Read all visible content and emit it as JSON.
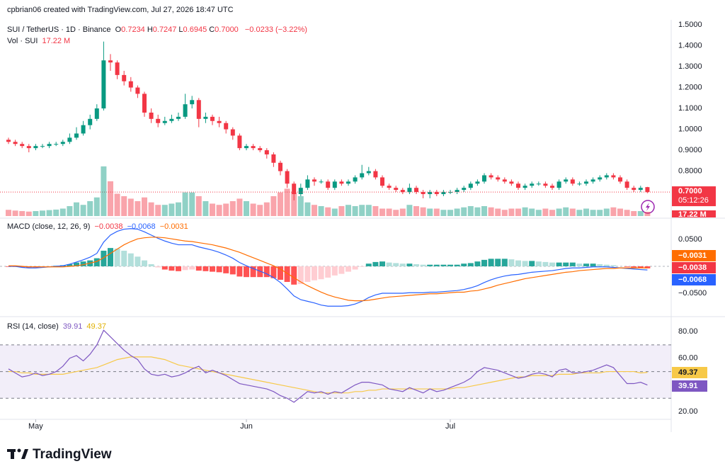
{
  "header": {
    "watermark": "cpbrian06 created with TradingView.com, Jul 27, 2026 18:47 UTC",
    "symbol": "SUI / TetherUS · 1D · Binance",
    "ohlc": [
      {
        "key": "O",
        "value": "0.7234"
      },
      {
        "key": "H",
        "value": "0.7247"
      },
      {
        "key": "L",
        "value": "0.6945"
      },
      {
        "key": "C",
        "value": "0.7000"
      }
    ],
    "change": "−0.0233 (−3.22%)",
    "vol_title": "Vol · SUI",
    "vol_value": "17.22 M",
    "macd_title": "MACD (close, 12, 26, 9)",
    "macd_hist": "−0.0038",
    "macd_line": "−0.0068",
    "macd_signal": "−0.0031",
    "rsi_title": "RSI (14, close)",
    "rsi_value": "39.91",
    "rsi_ma": "49.37",
    "last_price": "0.7000",
    "countdown": "05:12:26"
  },
  "footer": {
    "logo": "TradingView"
  },
  "chart_data": [
    {
      "type": "candlestick",
      "up_color": "#089981",
      "down_color": "#f23645",
      "xlim": [
        -1.25,
        97.5
      ],
      "xticks": [
        {
          "value": 4,
          "label": "May"
        },
        {
          "value": 35,
          "label": "Jun"
        },
        {
          "value": 65,
          "label": "Jul"
        }
      ],
      "ylim": [
        0.585,
        1.524
      ],
      "yticks": [
        {
          "value": 1.5,
          "label": "1.5000"
        },
        {
          "value": 1.4,
          "label": "1.4000"
        },
        {
          "value": 1.3,
          "label": "1.3000"
        },
        {
          "value": 1.2,
          "label": "1.2000"
        },
        {
          "value": 1.1,
          "label": "1.1000"
        },
        {
          "value": 1,
          "label": "1.0000"
        },
        {
          "value": 0.9,
          "label": "0.9000"
        },
        {
          "value": 0.8,
          "label": "0.8000"
        }
      ],
      "open": [
        0.95,
        0.94,
        0.93,
        0.92,
        0.91,
        0.92,
        0.92,
        0.93,
        0.93,
        0.94,
        0.96,
        0.98,
        1.02,
        1.05,
        1.1,
        1.33,
        1.32,
        1.26,
        1.23,
        1.2,
        1.17,
        1.08,
        1.05,
        1.03,
        1.04,
        1.05,
        1.06,
        1.12,
        1.14,
        1.05,
        1.06,
        1.04,
        1.03,
        1.0,
        0.97,
        0.91,
        0.92,
        0.91,
        0.9,
        0.88,
        0.84,
        0.8,
        0.74,
        0.69,
        0.72,
        0.76,
        0.75,
        0.75,
        0.72,
        0.75,
        0.74,
        0.75,
        0.77,
        0.79,
        0.8,
        0.77,
        0.73,
        0.72,
        0.71,
        0.7,
        0.72,
        0.7,
        0.69,
        0.7,
        0.69,
        0.7,
        0.7,
        0.71,
        0.72,
        0.74,
        0.75,
        0.78,
        0.77,
        0.76,
        0.75,
        0.74,
        0.72,
        0.73,
        0.74,
        0.74,
        0.73,
        0.72,
        0.75,
        0.76,
        0.74,
        0.74,
        0.75,
        0.76,
        0.77,
        0.78,
        0.77,
        0.75,
        0.72,
        0.71,
        0.7234
      ],
      "high": [
        0.96,
        0.95,
        0.94,
        0.93,
        0.93,
        0.93,
        0.94,
        0.94,
        0.95,
        0.98,
        1.01,
        1.04,
        1.07,
        1.12,
        1.42,
        1.36,
        1.33,
        1.28,
        1.25,
        1.21,
        1.18,
        1.1,
        1.07,
        1.06,
        1.07,
        1.08,
        1.17,
        1.16,
        1.15,
        1.08,
        1.07,
        1.06,
        1.04,
        1.01,
        0.98,
        0.93,
        0.93,
        0.92,
        0.91,
        0.89,
        0.85,
        0.81,
        0.75,
        0.74,
        0.78,
        0.77,
        0.76,
        0.76,
        0.76,
        0.76,
        0.76,
        0.78,
        0.83,
        0.82,
        0.81,
        0.78,
        0.74,
        0.73,
        0.72,
        0.74,
        0.73,
        0.71,
        0.71,
        0.71,
        0.71,
        0.71,
        0.72,
        0.73,
        0.75,
        0.76,
        0.79,
        0.79,
        0.78,
        0.77,
        0.76,
        0.75,
        0.74,
        0.75,
        0.75,
        0.75,
        0.74,
        0.76,
        0.77,
        0.77,
        0.75,
        0.76,
        0.77,
        0.78,
        0.79,
        0.79,
        0.78,
        0.76,
        0.73,
        0.73,
        0.7247
      ],
      "low": [
        0.93,
        0.92,
        0.91,
        0.89,
        0.9,
        0.91,
        0.91,
        0.92,
        0.92,
        0.93,
        0.95,
        0.97,
        1.0,
        1.04,
        1.09,
        1.28,
        1.24,
        1.21,
        1.18,
        1.15,
        1.06,
        1.03,
        1.01,
        1.02,
        1.03,
        1.04,
        1.05,
        1.1,
        1.01,
        1.03,
        1.02,
        1.01,
        0.98,
        0.95,
        0.9,
        0.9,
        0.9,
        0.89,
        0.86,
        0.82,
        0.78,
        0.72,
        0.66,
        0.68,
        0.71,
        0.73,
        0.74,
        0.71,
        0.71,
        0.73,
        0.73,
        0.74,
        0.76,
        0.78,
        0.76,
        0.72,
        0.71,
        0.7,
        0.69,
        0.69,
        0.69,
        0.67,
        0.67,
        0.68,
        0.68,
        0.69,
        0.69,
        0.7,
        0.71,
        0.73,
        0.74,
        0.76,
        0.75,
        0.74,
        0.73,
        0.71,
        0.71,
        0.72,
        0.73,
        0.72,
        0.71,
        0.71,
        0.74,
        0.73,
        0.73,
        0.73,
        0.74,
        0.75,
        0.76,
        0.76,
        0.74,
        0.71,
        0.7,
        0.7,
        0.6945
      ],
      "close": [
        0.94,
        0.93,
        0.92,
        0.91,
        0.92,
        0.92,
        0.93,
        0.93,
        0.94,
        0.96,
        0.98,
        1.02,
        1.05,
        1.1,
        1.33,
        1.32,
        1.26,
        1.23,
        1.2,
        1.17,
        1.08,
        1.05,
        1.03,
        1.04,
        1.05,
        1.06,
        1.12,
        1.14,
        1.05,
        1.06,
        1.04,
        1.03,
        1.0,
        0.97,
        0.91,
        0.92,
        0.91,
        0.9,
        0.88,
        0.84,
        0.8,
        0.74,
        0.69,
        0.72,
        0.76,
        0.75,
        0.75,
        0.72,
        0.75,
        0.74,
        0.75,
        0.77,
        0.79,
        0.8,
        0.77,
        0.73,
        0.72,
        0.71,
        0.7,
        0.72,
        0.7,
        0.69,
        0.7,
        0.69,
        0.7,
        0.7,
        0.71,
        0.72,
        0.74,
        0.75,
        0.78,
        0.77,
        0.76,
        0.75,
        0.74,
        0.72,
        0.73,
        0.74,
        0.74,
        0.73,
        0.72,
        0.75,
        0.76,
        0.74,
        0.74,
        0.75,
        0.76,
        0.77,
        0.78,
        0.77,
        0.75,
        0.72,
        0.71,
        0.72,
        0.7
      ]
    },
    {
      "type": "volume",
      "ylim": [
        0,
        790
      ],
      "values": [
        25,
        22,
        20,
        18,
        20,
        22,
        24,
        26,
        30,
        40,
        55,
        45,
        60,
        75,
        200,
        140,
        90,
        80,
        70,
        60,
        75,
        55,
        45,
        45,
        50,
        55,
        95,
        95,
        80,
        60,
        50,
        45,
        50,
        60,
        70,
        60,
        50,
        45,
        55,
        80,
        95,
        110,
        95,
        80,
        55,
        45,
        40,
        35,
        30,
        40,
        45,
        40,
        45,
        45,
        40,
        30,
        30,
        25,
        30,
        45,
        40,
        35,
        30,
        30,
        25,
        25,
        30,
        35,
        40,
        35,
        40,
        35,
        30,
        25,
        30,
        30,
        35,
        30,
        25,
        30,
        25,
        30,
        35,
        30,
        25,
        30,
        25,
        25,
        30,
        35,
        30,
        25,
        20,
        20,
        17.22
      ]
    },
    {
      "type": "macd",
      "ylim": [
        -0.0908,
        0.0868
      ],
      "yticks": [
        {
          "value": 0.05,
          "label": "0.0500"
        },
        {
          "value": -0.05,
          "label": "−0.0500"
        }
      ],
      "macd_color": "#2962ff",
      "signal_color": "#ff6d00",
      "macd": [
        0.0,
        0.0,
        -0.002,
        -0.003,
        -0.003,
        -0.002,
        -0.001,
        0.0,
        0.001,
        0.004,
        0.008,
        0.012,
        0.017,
        0.024,
        0.045,
        0.058,
        0.065,
        0.069,
        0.07,
        0.069,
        0.064,
        0.058,
        0.052,
        0.047,
        0.043,
        0.04,
        0.04,
        0.04,
        0.036,
        0.033,
        0.03,
        0.026,
        0.021,
        0.015,
        0.007,
        0.001,
        -0.004,
        -0.009,
        -0.014,
        -0.021,
        -0.03,
        -0.042,
        -0.055,
        -0.062,
        -0.065,
        -0.068,
        -0.072,
        -0.074,
        -0.074,
        -0.074,
        -0.073,
        -0.07,
        -0.065,
        -0.058,
        -0.053,
        -0.05,
        -0.05,
        -0.05,
        -0.05,
        -0.049,
        -0.049,
        -0.049,
        -0.048,
        -0.048,
        -0.047,
        -0.046,
        -0.045,
        -0.043,
        -0.04,
        -0.036,
        -0.03,
        -0.025,
        -0.021,
        -0.018,
        -0.016,
        -0.015,
        -0.013,
        -0.011,
        -0.01,
        -0.009,
        -0.008,
        -0.006,
        -0.004,
        -0.003,
        -0.003,
        -0.002,
        -0.001,
        -0.001,
        -0.001,
        -0.002,
        -0.003,
        -0.004,
        -0.005,
        -0.006,
        -0.0068
      ],
      "signal": [
        0.001,
        0.001,
        0.0,
        -0.001,
        -0.001,
        -0.001,
        -0.001,
        -0.001,
        -0.001,
        0.0,
        0.001,
        0.003,
        0.006,
        0.009,
        0.016,
        0.024,
        0.032,
        0.04,
        0.046,
        0.051,
        0.053,
        0.054,
        0.054,
        0.053,
        0.051,
        0.049,
        0.047,
        0.046,
        0.044,
        0.042,
        0.04,
        0.037,
        0.034,
        0.03,
        0.026,
        0.021,
        0.016,
        0.011,
        0.006,
        0.001,
        -0.005,
        -0.013,
        -0.021,
        -0.029,
        -0.036,
        -0.042,
        -0.048,
        -0.053,
        -0.057,
        -0.06,
        -0.063,
        -0.064,
        -0.064,
        -0.063,
        -0.061,
        -0.059,
        -0.057,
        -0.056,
        -0.055,
        -0.054,
        -0.053,
        -0.052,
        -0.051,
        -0.051,
        -0.05,
        -0.049,
        -0.048,
        -0.048,
        -0.046,
        -0.045,
        -0.042,
        -0.039,
        -0.035,
        -0.032,
        -0.029,
        -0.026,
        -0.023,
        -0.021,
        -0.019,
        -0.017,
        -0.015,
        -0.013,
        -0.011,
        -0.01,
        -0.008,
        -0.007,
        -0.006,
        -0.005,
        -0.004,
        -0.004,
        -0.003,
        -0.003,
        -0.003,
        -0.003,
        -0.0031
      ],
      "histogram": [
        -0.001,
        -0.001,
        -0.002,
        -0.002,
        -0.002,
        -0.001,
        0.0,
        0.001,
        0.002,
        0.004,
        0.007,
        0.009,
        0.011,
        0.015,
        0.029,
        0.034,
        0.033,
        0.029,
        0.024,
        0.018,
        0.011,
        0.004,
        -0.002,
        -0.006,
        -0.008,
        -0.009,
        -0.007,
        -0.006,
        -0.008,
        -0.009,
        -0.01,
        -0.011,
        -0.013,
        -0.015,
        -0.019,
        -0.02,
        -0.02,
        -0.02,
        -0.02,
        -0.022,
        -0.025,
        -0.029,
        -0.034,
        -0.033,
        -0.029,
        -0.026,
        -0.024,
        -0.021,
        -0.017,
        -0.014,
        -0.01,
        -0.006,
        -0.001,
        0.005,
        0.008,
        0.009,
        0.007,
        0.006,
        0.005,
        0.005,
        0.004,
        0.003,
        0.003,
        0.003,
        0.003,
        0.003,
        0.003,
        0.005,
        0.006,
        0.009,
        0.012,
        0.014,
        0.014,
        0.014,
        0.013,
        0.011,
        0.01,
        0.01,
        0.009,
        0.008,
        0.007,
        0.007,
        0.007,
        0.007,
        0.005,
        0.005,
        0.005,
        0.004,
        0.003,
        0.002,
        0.0,
        -0.001,
        -0.002,
        -0.003,
        -0.0038
      ]
    },
    {
      "type": "rsi",
      "ylim": [
        14.2,
        89.6
      ],
      "yticks": [
        {
          "value": 80,
          "label": "80.00"
        },
        {
          "value": 60,
          "label": "60.00"
        },
        {
          "value": 20,
          "label": "20.00"
        }
      ],
      "levels": [
        70,
        50,
        30
      ],
      "rsi_color": "#7e57c2",
      "ma_color": "#f7c948",
      "rsi": [
        52,
        49,
        46,
        47,
        49,
        47,
        48,
        50,
        54,
        60,
        62,
        58,
        63,
        70,
        81,
        76,
        71,
        66,
        62,
        59,
        52,
        48,
        47,
        48,
        46,
        47,
        49,
        52,
        54,
        49,
        51,
        49,
        47,
        44,
        41,
        40,
        39,
        38,
        37,
        35,
        32,
        30,
        27,
        31,
        35,
        34,
        35,
        33,
        35,
        34,
        37,
        40,
        42,
        42,
        41,
        40,
        37,
        36,
        35,
        38,
        36,
        34,
        37,
        35,
        36,
        38,
        40,
        42,
        45,
        50,
        53,
        52,
        51,
        49,
        47,
        45,
        46,
        48,
        49,
        48,
        46,
        51,
        52,
        49,
        49,
        50,
        51,
        53,
        55,
        53,
        47,
        41,
        41,
        42,
        39.91
      ],
      "ma": [
        50,
        50,
        49,
        49,
        48,
        48,
        48,
        48,
        48,
        49,
        50,
        51,
        52,
        53,
        55,
        57,
        59,
        60,
        61,
        61,
        61,
        61,
        60,
        59,
        57,
        55,
        54,
        53,
        52,
        51,
        50,
        49,
        48,
        47,
        46,
        45,
        44,
        43,
        42,
        41,
        40,
        39,
        38,
        37,
        36,
        35,
        34,
        34,
        34,
        34,
        34,
        35,
        35,
        36,
        36,
        37,
        37,
        37,
        37,
        37,
        37,
        37,
        37,
        37,
        37,
        37,
        38,
        38,
        39,
        40,
        41,
        42,
        43,
        44,
        45,
        46,
        46,
        47,
        47,
        47,
        47,
        48,
        48,
        48,
        49,
        49,
        49,
        49,
        50,
        50,
        50,
        50,
        50,
        49,
        49.37
      ]
    }
  ]
}
